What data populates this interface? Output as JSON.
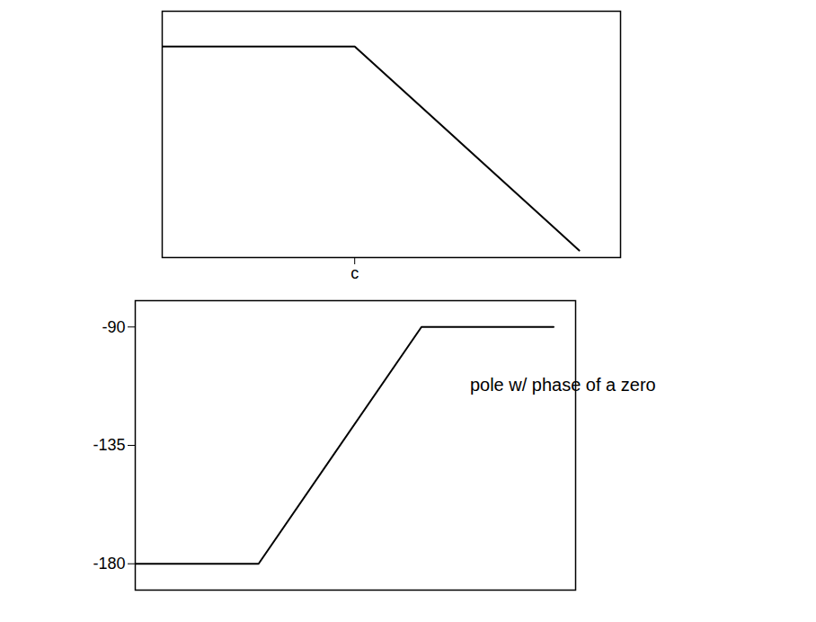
{
  "chart_data": [
    {
      "type": "line",
      "x": [
        0,
        4.2,
        9.1
      ],
      "values": [
        10,
        10,
        -1.6
      ],
      "xlim": [
        0,
        10
      ],
      "ylim": [
        -2,
        12
      ],
      "xticks": [
        {
          "value": 4.2,
          "label": "c"
        }
      ],
      "yticks": [],
      "tick_labels": "x",
      "color": "#000000"
    },
    {
      "type": "line",
      "x": [
        0,
        2.8,
        6.5,
        9.5
      ],
      "values": [
        -180,
        -180,
        -90,
        -90
      ],
      "xlim": [
        0,
        10
      ],
      "ylim": [
        -190,
        -80
      ],
      "xticks": [],
      "yticks": [
        -180,
        -135,
        -90
      ],
      "tick_labels": "y",
      "color": "#000000",
      "annotations": [
        {
          "text": "pole w/ phase of a zero",
          "x": 7.6,
          "y": -112
        }
      ]
    }
  ]
}
